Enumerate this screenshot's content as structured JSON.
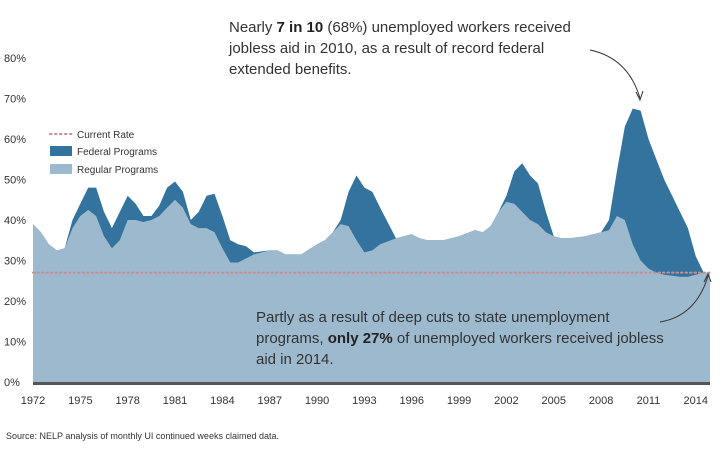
{
  "annotations": {
    "top": {
      "pre": "Nearly ",
      "bold": "7 in 10",
      "post": " (68%) unemployed workers received jobless aid in 2010, as a result of record federal extended benefits."
    },
    "bottom": {
      "pre": "Partly as a result of deep cuts to state unemployment programs, ",
      "bold": "only 27%",
      "post": " of unemployed workers received jobless aid in 2014."
    }
  },
  "source": "Source: NELP analysis of monthly UI continued weeks claimed data.",
  "colors": {
    "regular": "#9db9ce",
    "federal": "#33739e",
    "current_rate": "#c98f8f",
    "baseline": "#555555"
  },
  "chart_data": {
    "type": "area",
    "title": "",
    "xlabel": "",
    "ylabel": "",
    "xlim": [
      1972,
      2014.9
    ],
    "ylim": [
      0,
      80
    ],
    "x_ticks": [
      "1972",
      "1975",
      "1978",
      "1981",
      "1984",
      "1987",
      "1990",
      "1993",
      "1996",
      "1999",
      "2002",
      "2005",
      "2008",
      "2011",
      "2014"
    ],
    "y_ticks": [
      "0%",
      "10%",
      "20%",
      "30%",
      "40%",
      "50%",
      "60%",
      "70%",
      "80%"
    ],
    "legend_position": "left",
    "grid": false,
    "current_rate": {
      "name": "Current Rate",
      "value": 27
    },
    "series": [
      {
        "name": "Regular Programs",
        "points": [
          [
            1972.0,
            39
          ],
          [
            1972.5,
            37
          ],
          [
            1973.0,
            34
          ],
          [
            1973.5,
            32.5
          ],
          [
            1974.0,
            33
          ],
          [
            1974.5,
            38
          ],
          [
            1975.0,
            41
          ],
          [
            1975.5,
            42.5
          ],
          [
            1976.0,
            41
          ],
          [
            1976.5,
            36
          ],
          [
            1977.0,
            33
          ],
          [
            1977.5,
            35
          ],
          [
            1978.0,
            40
          ],
          [
            1978.5,
            40
          ],
          [
            1979.0,
            39.5
          ],
          [
            1979.5,
            40
          ],
          [
            1980.0,
            41
          ],
          [
            1980.5,
            43
          ],
          [
            1981.0,
            45
          ],
          [
            1981.5,
            43
          ],
          [
            1982.0,
            39
          ],
          [
            1982.5,
            38
          ],
          [
            1983.0,
            38
          ],
          [
            1983.5,
            37
          ],
          [
            1984.0,
            33
          ],
          [
            1984.5,
            29.5
          ],
          [
            1985.0,
            29.5
          ],
          [
            1985.5,
            30.5
          ],
          [
            1986.0,
            31.5
          ],
          [
            1987.0,
            32.5
          ],
          [
            1987.5,
            32.5
          ],
          [
            1988.0,
            31.5
          ],
          [
            1989.0,
            31.5
          ],
          [
            1990.0,
            34
          ],
          [
            1990.5,
            35
          ],
          [
            1991.0,
            37
          ],
          [
            1991.5,
            39
          ],
          [
            1992.0,
            38.5
          ],
          [
            1992.5,
            35
          ],
          [
            1993.0,
            32
          ],
          [
            1993.5,
            32.5
          ],
          [
            1994.0,
            34
          ],
          [
            1995.0,
            35.5
          ],
          [
            1996.0,
            36.5
          ],
          [
            1996.5,
            35.5
          ],
          [
            1997.0,
            35
          ],
          [
            1998.0,
            35
          ],
          [
            1999.0,
            36
          ],
          [
            2000.0,
            37.5
          ],
          [
            2000.5,
            37
          ],
          [
            2001.0,
            38.5
          ],
          [
            2001.5,
            42
          ],
          [
            2002.0,
            44.5
          ],
          [
            2002.5,
            44
          ],
          [
            2003.0,
            42
          ],
          [
            2003.5,
            40
          ],
          [
            2004.0,
            39
          ],
          [
            2004.5,
            37
          ],
          [
            2005.0,
            36
          ],
          [
            2005.5,
            35.5
          ],
          [
            2006.0,
            35.5
          ],
          [
            2007.0,
            36
          ],
          [
            2007.5,
            36.5
          ],
          [
            2008.0,
            37
          ],
          [
            2008.5,
            37.5
          ],
          [
            2009.0,
            41
          ],
          [
            2009.5,
            40
          ],
          [
            2010.0,
            34
          ],
          [
            2010.5,
            30
          ],
          [
            2011.0,
            28
          ],
          [
            2011.5,
            27
          ],
          [
            2012.0,
            26.5
          ],
          [
            2013.0,
            26
          ],
          [
            2013.5,
            26
          ],
          [
            2014.0,
            26.5
          ],
          [
            2014.5,
            27
          ],
          [
            2014.9,
            27
          ]
        ]
      },
      {
        "name": "Federal Programs",
        "points": [
          [
            1972.0,
            39
          ],
          [
            1972.5,
            37
          ],
          [
            1973.0,
            34
          ],
          [
            1973.5,
            32.5
          ],
          [
            1974.0,
            33
          ],
          [
            1974.5,
            40
          ],
          [
            1975.0,
            44
          ],
          [
            1975.5,
            48
          ],
          [
            1976.0,
            48
          ],
          [
            1976.5,
            42
          ],
          [
            1977.0,
            38
          ],
          [
            1977.5,
            42
          ],
          [
            1978.0,
            46
          ],
          [
            1978.5,
            44
          ],
          [
            1979.0,
            41
          ],
          [
            1979.5,
            41
          ],
          [
            1980.0,
            43.5
          ],
          [
            1980.5,
            48
          ],
          [
            1981.0,
            49.5
          ],
          [
            1981.5,
            47
          ],
          [
            1982.0,
            40
          ],
          [
            1982.5,
            42
          ],
          [
            1983.0,
            46
          ],
          [
            1983.5,
            46.5
          ],
          [
            1984.0,
            41
          ],
          [
            1984.5,
            35
          ],
          [
            1985.0,
            34
          ],
          [
            1985.5,
            33.5
          ],
          [
            1986.0,
            32
          ],
          [
            1987.0,
            32.5
          ],
          [
            1987.5,
            32.5
          ],
          [
            1988.0,
            31.5
          ],
          [
            1989.0,
            31.5
          ],
          [
            1990.0,
            34
          ],
          [
            1990.5,
            35
          ],
          [
            1991.0,
            37
          ],
          [
            1991.5,
            40
          ],
          [
            1992.0,
            47
          ],
          [
            1992.5,
            51
          ],
          [
            1993.0,
            48
          ],
          [
            1993.5,
            47
          ],
          [
            1994.0,
            43
          ],
          [
            1995.0,
            35.5
          ],
          [
            1996.0,
            36.5
          ],
          [
            1996.5,
            35.5
          ],
          [
            1997.0,
            35
          ],
          [
            1998.0,
            35
          ],
          [
            1999.0,
            36
          ],
          [
            2000.0,
            37.5
          ],
          [
            2000.5,
            37
          ],
          [
            2001.0,
            38.5
          ],
          [
            2001.5,
            42
          ],
          [
            2002.0,
            46
          ],
          [
            2002.5,
            52
          ],
          [
            2003.0,
            54
          ],
          [
            2003.5,
            51
          ],
          [
            2004.0,
            49
          ],
          [
            2004.5,
            42
          ],
          [
            2005.0,
            36
          ],
          [
            2005.5,
            35.5
          ],
          [
            2006.0,
            35.5
          ],
          [
            2007.0,
            36
          ],
          [
            2007.5,
            36.5
          ],
          [
            2008.0,
            37
          ],
          [
            2008.5,
            40
          ],
          [
            2009.0,
            52
          ],
          [
            2009.5,
            63
          ],
          [
            2010.0,
            67.5
          ],
          [
            2010.5,
            67
          ],
          [
            2011.0,
            60
          ],
          [
            2011.5,
            55
          ],
          [
            2012.0,
            50
          ],
          [
            2013.0,
            42
          ],
          [
            2013.5,
            38
          ],
          [
            2014.0,
            31
          ],
          [
            2014.5,
            27
          ],
          [
            2014.9,
            27
          ]
        ]
      }
    ]
  }
}
